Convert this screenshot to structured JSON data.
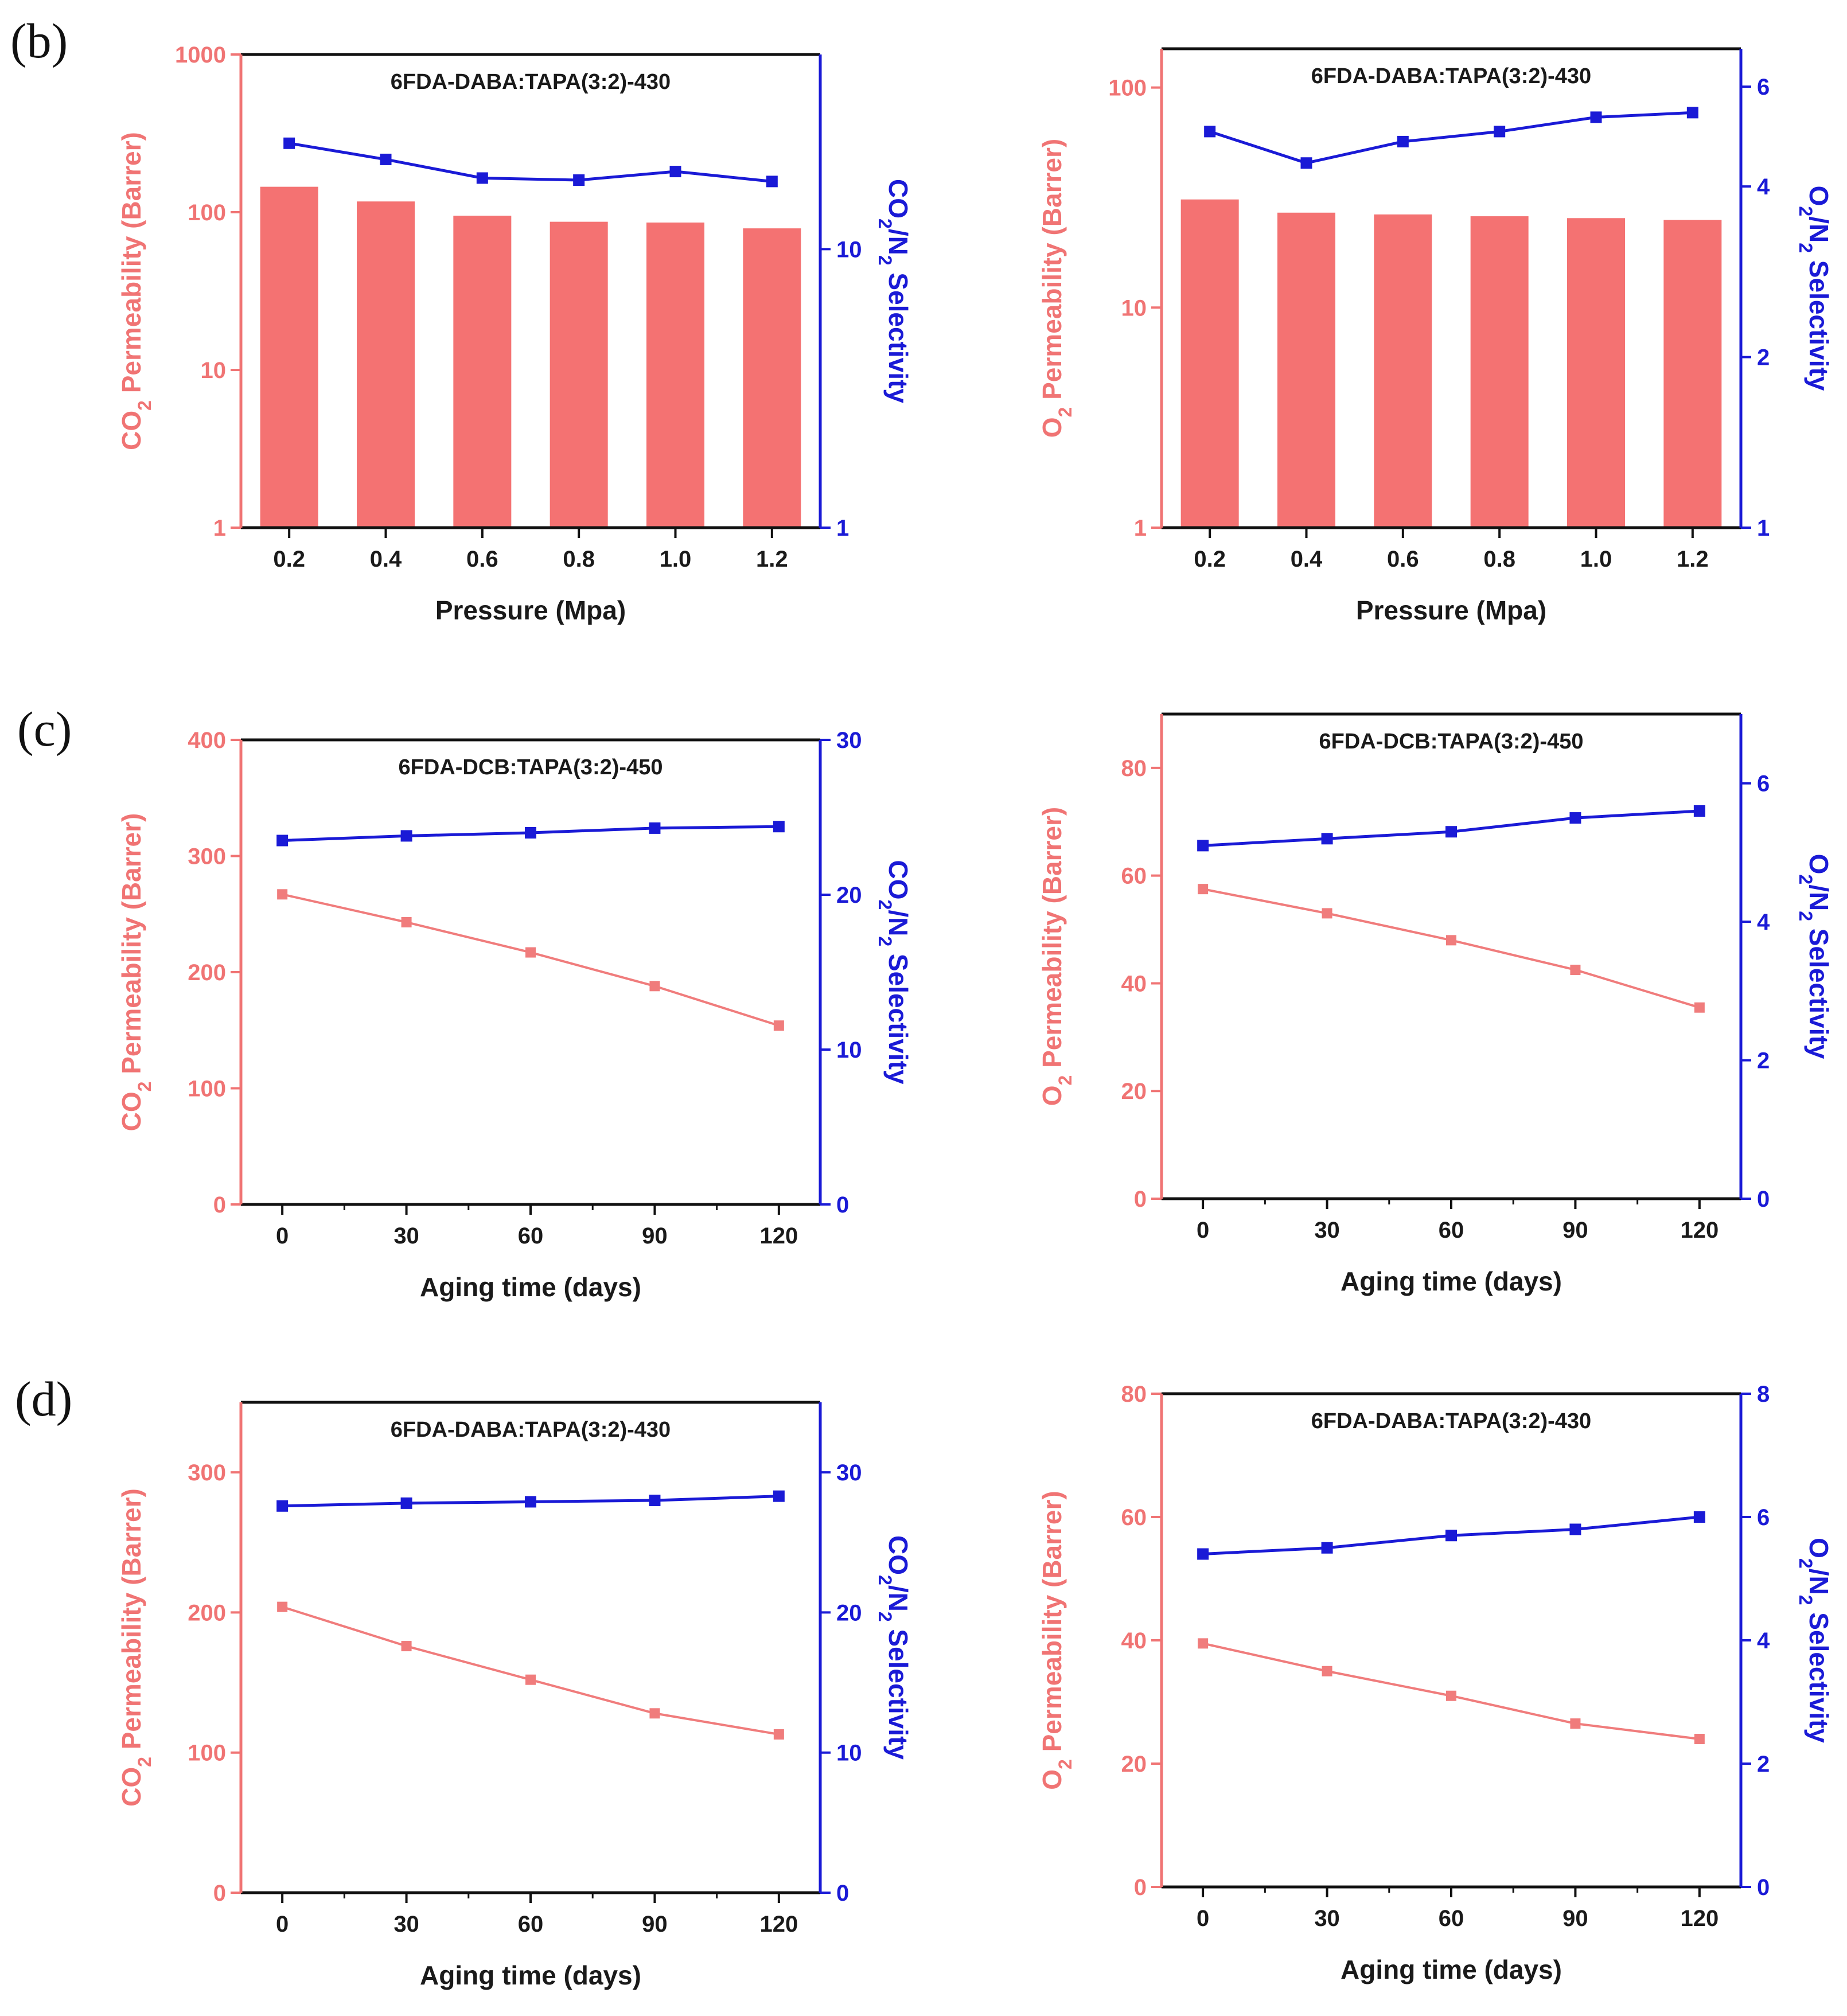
{
  "colors": {
    "left_axis": "#f07474",
    "bar_fill": "#f47272",
    "line_left": "#f07c7c",
    "right_axis": "#1a1ad6",
    "frame": "#111111"
  },
  "panel_labels": [
    "(b)",
    "(c)",
    "(d)"
  ],
  "chart_data": [
    {
      "type": "bar",
      "title": "6FDA-DABA:TAPA(3:2)-430",
      "xlabel": "Pressure (Mpa)",
      "ylabel": {
        "pre": "CO",
        "sub": "2",
        "post": " Permeability (Barrer)"
      },
      "y2label": {
        "a": "CO",
        "a_sub": "2",
        "b": "/N",
        "b_sub": "2",
        "c": " Selectivity"
      },
      "y_scale": "log",
      "ylim": [
        1,
        1000
      ],
      "y_ticks": [
        1,
        10,
        100,
        1000
      ],
      "y_ticks_text": [
        "1",
        "10",
        "100",
        "1000"
      ],
      "y2_scale": "log",
      "y2lim": [
        1,
        50
      ],
      "y2_ticks": [
        1,
        10
      ],
      "y2_ticks_text": [
        "1",
        "10"
      ],
      "categories": [
        "0.2",
        "0.4",
        "0.6",
        "0.8",
        "1.0",
        "1.2"
      ],
      "bar_values": [
        145,
        117,
        95,
        87,
        86,
        79
      ],
      "line_values": [
        24,
        21,
        18,
        17.7,
        19,
        17.5
      ]
    },
    {
      "type": "bar",
      "title": "6FDA-DABA:TAPA(3:2)-430",
      "xlabel": "Pressure (Mpa)",
      "ylabel": {
        "pre": "O",
        "sub": "2",
        "post": " Permeability (Barrer)"
      },
      "y2label": {
        "a": "O",
        "a_sub": "2",
        "b": "/N",
        "b_sub": "2",
        "c": " Selectivity"
      },
      "y_scale": "log",
      "ylim": [
        1,
        150
      ],
      "y_ticks": [
        1,
        10,
        100
      ],
      "y_ticks_text": [
        "1",
        "10",
        "100"
      ],
      "y2_scale": "log",
      "y2lim": [
        1,
        7
      ],
      "y2_ticks": [
        1,
        2,
        4,
        6
      ],
      "y2_ticks_text": [
        "1",
        "2",
        "4",
        "6"
      ],
      "categories": [
        "0.2",
        "0.4",
        "0.6",
        "0.8",
        "1.0",
        "1.2"
      ],
      "bar_values": [
        31,
        27,
        26.5,
        26,
        25.5,
        25
      ],
      "line_values": [
        5.0,
        4.4,
        4.8,
        5.0,
        5.3,
        5.4
      ]
    },
    {
      "type": "line",
      "title": "6FDA-DCB:TAPA(3:2)-450",
      "xlabel": "Aging time (days)",
      "ylabel": {
        "pre": "CO",
        "sub": "2",
        "post": " Permeability (Barrer)"
      },
      "y2label": {
        "a": "CO",
        "a_sub": "2",
        "b": "/N",
        "b_sub": "2",
        "c": " Selectivity"
      },
      "xlim": [
        -10,
        130
      ],
      "x": [
        0,
        30,
        60,
        90,
        120
      ],
      "x_ticks_text": [
        "0",
        "30",
        "60",
        "90",
        "120"
      ],
      "ylim": [
        0,
        400
      ],
      "y_ticks": [
        0,
        100,
        200,
        300,
        400
      ],
      "y_ticks_text": [
        "0",
        "100",
        "200",
        "300",
        "400"
      ],
      "y2lim": [
        0,
        30
      ],
      "y2_ticks": [
        0,
        10,
        20,
        30
      ],
      "y2_ticks_text": [
        "0",
        "10",
        "20",
        "30"
      ],
      "left_values": [
        267,
        243,
        217,
        188,
        154
      ],
      "right_values": [
        23.5,
        23.8,
        24.0,
        24.3,
        24.4
      ]
    },
    {
      "type": "line",
      "title": "6FDA-DCB:TAPA(3:2)-450",
      "xlabel": "Aging time (days)",
      "ylabel": {
        "pre": "O",
        "sub": "2",
        "post": " Permeability (Barrer)"
      },
      "y2label": {
        "a": "O",
        "a_sub": "2",
        "b": "/N",
        "b_sub": "2",
        "c": " Selectivity"
      },
      "xlim": [
        -10,
        130
      ],
      "x": [
        0,
        30,
        60,
        90,
        120
      ],
      "x_ticks_text": [
        "0",
        "30",
        "60",
        "90",
        "120"
      ],
      "ylim": [
        0,
        90
      ],
      "y_ticks": [
        0,
        20,
        40,
        60,
        80
      ],
      "y_ticks_text": [
        "0",
        "20",
        "40",
        "60",
        "80"
      ],
      "y2lim": [
        0,
        7
      ],
      "y2_ticks": [
        0,
        2,
        4,
        6
      ],
      "y2_ticks_text": [
        "0",
        "2",
        "4",
        "6"
      ],
      "left_values": [
        57.5,
        53,
        48,
        42.5,
        35.5
      ],
      "right_values": [
        5.1,
        5.2,
        5.3,
        5.5,
        5.6
      ]
    },
    {
      "type": "line",
      "title": "6FDA-DABA:TAPA(3:2)-430",
      "xlabel": "Aging time (days)",
      "ylabel": {
        "pre": "CO",
        "sub": "2",
        "post": " Permeability (Barrer)"
      },
      "y2label": {
        "a": "CO",
        "a_sub": "2",
        "b": "/N",
        "b_sub": "2",
        "c": " Selectivity"
      },
      "xlim": [
        -10,
        130
      ],
      "x": [
        0,
        30,
        60,
        90,
        120
      ],
      "x_ticks_text": [
        "0",
        "30",
        "60",
        "90",
        "120"
      ],
      "ylim": [
        0,
        350
      ],
      "y_ticks": [
        0,
        100,
        200,
        300
      ],
      "y_ticks_text": [
        "0",
        "100",
        "200",
        "300"
      ],
      "y2lim": [
        0,
        35
      ],
      "y2_ticks": [
        0,
        10,
        20,
        30
      ],
      "y2_ticks_text": [
        "0",
        "10",
        "20",
        "30"
      ],
      "left_values": [
        204,
        176,
        152,
        128,
        113
      ],
      "right_values": [
        27.6,
        27.8,
        27.9,
        28.0,
        28.3
      ]
    },
    {
      "type": "line",
      "title": "6FDA-DABA:TAPA(3:2)-430",
      "xlabel": "Aging time (days)",
      "ylabel": {
        "pre": "O",
        "sub": "2",
        "post": " Permeability (Barrer)"
      },
      "y2label": {
        "a": "O",
        "a_sub": "2",
        "b": "/N",
        "b_sub": "2",
        "c": " Selectivity"
      },
      "xlim": [
        -10,
        130
      ],
      "x": [
        0,
        30,
        60,
        90,
        120
      ],
      "x_ticks_text": [
        "0",
        "30",
        "60",
        "90",
        "120"
      ],
      "ylim": [
        0,
        80
      ],
      "y_ticks": [
        0,
        20,
        40,
        60,
        80
      ],
      "y_ticks_text": [
        "0",
        "20",
        "40",
        "60",
        "80"
      ],
      "y2lim": [
        0,
        8
      ],
      "y2_ticks": [
        0,
        2,
        4,
        6,
        8
      ],
      "y2_ticks_text": [
        "0",
        "2",
        "4",
        "6",
        "8"
      ],
      "left_values": [
        39.5,
        35,
        31,
        26.5,
        24
      ],
      "right_values": [
        5.4,
        5.5,
        5.7,
        5.8,
        6.0
      ]
    }
  ]
}
